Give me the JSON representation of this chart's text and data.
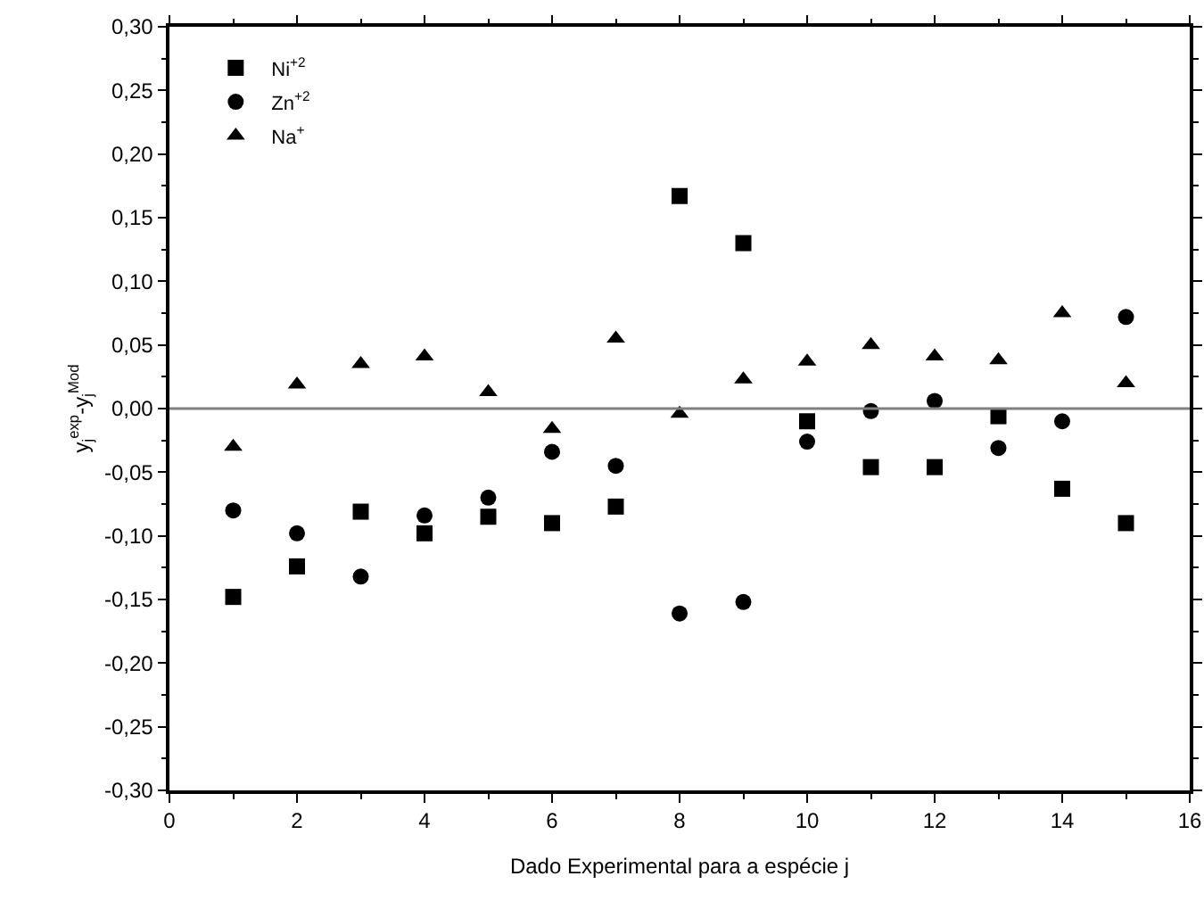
{
  "chart_data": {
    "type": "scatter",
    "xlabel": "Dado Experimental para a espécie j",
    "ylabel": "y$_{j}$$^{exp}$-y$_{j}$$^{Mod}$",
    "x": [
      1,
      2,
      3,
      4,
      5,
      6,
      7,
      8,
      9,
      10,
      11,
      12,
      13,
      14,
      15
    ],
    "series": [
      {
        "name": "Ni$^{+2}$",
        "color": "#000000",
        "marker": "square",
        "values": [
          -0.148,
          -0.124,
          -0.081,
          -0.098,
          -0.085,
          -0.09,
          -0.077,
          0.167,
          0.13,
          -0.01,
          -0.046,
          -0.046,
          -0.006,
          -0.063,
          -0.09
        ]
      },
      {
        "name": "Zn$^{+2}$",
        "color": "#000000",
        "marker": "circle",
        "values": [
          -0.08,
          -0.098,
          -0.132,
          -0.084,
          -0.07,
          -0.034,
          -0.045,
          -0.161,
          -0.152,
          -0.026,
          -0.002,
          0.006,
          -0.031,
          -0.01,
          0.072
        ]
      },
      {
        "name": "Na$^{+}$",
        "color": "#000000",
        "marker": "triangle",
        "values": [
          -0.03,
          0.019,
          0.035,
          0.041,
          0.013,
          -0.016,
          0.055,
          -0.004,
          0.023,
          0.037,
          0.05,
          0.041,
          0.038,
          0.075,
          0.02
        ]
      }
    ],
    "xlim": [
      0,
      16
    ],
    "xticks": [
      0,
      2,
      4,
      6,
      8,
      10,
      12,
      14,
      16
    ],
    "ylim": [
      -0.3,
      0.3
    ],
    "yticks": [
      {
        "value": -0.3,
        "label": "-0,30"
      },
      {
        "value": -0.25,
        "label": "-0,25"
      },
      {
        "value": -0.2,
        "label": "-0,20"
      },
      {
        "value": -0.15,
        "label": "-0,15"
      },
      {
        "value": -0.1,
        "label": "-0,10"
      },
      {
        "value": -0.05,
        "label": "-0,05"
      },
      {
        "value": 0,
        "label": "0,00"
      },
      {
        "value": 0.05,
        "label": "0,05"
      },
      {
        "value": 0.1,
        "label": "0,10"
      },
      {
        "value": 0.15,
        "label": "0,15"
      },
      {
        "value": 0.2,
        "label": "0,20"
      },
      {
        "value": 0.25,
        "label": "0,25"
      },
      {
        "value": 0.3,
        "label": "0,30"
      }
    ],
    "ref_lines": [
      {
        "axis": "y",
        "value": 0,
        "color": "#808080"
      }
    ],
    "legend": "top left",
    "grid": false
  }
}
